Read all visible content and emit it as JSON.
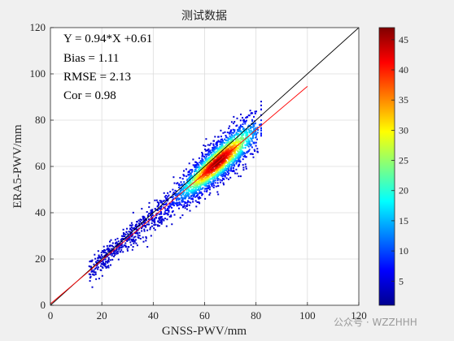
{
  "chart_data": {
    "type": "scatter",
    "title": "测试数据",
    "xlabel": "GNSS-PWV/mm",
    "ylabel": "ERA5-PWV/mm",
    "xlim": [
      0,
      120
    ],
    "ylim": [
      0,
      120
    ],
    "xticks": [
      "0",
      "20",
      "40",
      "60",
      "80",
      "100",
      "120"
    ],
    "yticks": [
      "0",
      "20",
      "40",
      "60",
      "80",
      "100",
      "120"
    ],
    "grid": true,
    "stats": {
      "equation": "Y = 0.94*X +0.61",
      "bias": "Bias = 1.11",
      "rmse": "RMSE = 2.13",
      "cor": "Cor = 0.98"
    },
    "reference_line": {
      "slope": 1,
      "intercept": 0,
      "color": "#000000"
    },
    "fit_line": {
      "slope": 0.94,
      "intercept": 0.61,
      "x_range": [
        0,
        100
      ],
      "color": "#ff0000"
    },
    "point_cloud": {
      "x_range": [
        12,
        82
      ],
      "density_peak_x": 65,
      "note_colors": "points colored by density using jet colormap"
    },
    "colorbar": {
      "range": [
        1,
        47
      ],
      "ticks": [
        "5",
        "10",
        "15",
        "20",
        "25",
        "30",
        "35",
        "40",
        "45"
      ],
      "colormap": "jet"
    }
  },
  "watermark": "公众号 · WZZHHH"
}
